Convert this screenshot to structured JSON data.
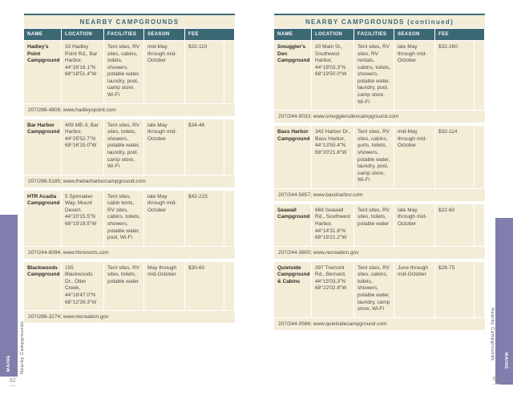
{
  "palette": {
    "teal": "#3c6874",
    "cream": "#f3edd8",
    "purple": "#7f7eac"
  },
  "pages": [
    {
      "title": "NEARBY CAMPGROUNDS",
      "columns": [
        "NAME",
        "LOCATION",
        "FACILITIES",
        "SEASON",
        "FEE"
      ],
      "campgrounds": [
        {
          "name": "Hadley's Point Campground",
          "location": "33 Hadley Point Rd., Bar Harbor, 44°26'16.1\"N 68°18'51.4\"W",
          "facilities": "Tent sites, RV sites, cabins, toilets, showers, potable water, laundry, pool, camp store, Wi-Fi",
          "season": "mid-May through mid-October",
          "fee": "$32-110",
          "contact": "207/288-4808; www.hadleyspoint.com"
        },
        {
          "name": "Bar Harbor Campground",
          "location": "409 ME-3, Bar Harbor, 44°25'52.7\"N 68°16'15.0\"W",
          "facilities": "Tent sites, RV sites, toilets, showers, potable water, laundry, pool, camp store, Wi-Fi",
          "season": "late May through mid-October",
          "fee": "$34-46",
          "contact": "207/288-5185; www.thebarharborcampground.com"
        },
        {
          "name": "HTR Acadia Campground",
          "location": "5 Spinnaker Way, Mount Desert, 44°20'15.5\"N 68°19'19.5\"W",
          "facilities": "Tent sites, cabin tents, RV sites, cabins, toilets, showers, potable water, pool, Wi-Fi",
          "season": "late May through mid-October",
          "fee": "$42-215",
          "contact": "207/244-8094; www.htrresorts.com"
        },
        {
          "name": "Blackwoods Campground",
          "location": "155 Blackwoods Dr., Otter Creek, 44°18'47.0\"N 68°12'39.3\"W",
          "facilities": "Tent sites, RV sites, toilets, potable water",
          "season": "May through mid-October",
          "fee": "$30-60",
          "contact": "207/288-3274; www.recreation.gov"
        }
      ],
      "sidebar": {
        "state": "MAINE",
        "section": "Nearby Campgrounds"
      },
      "page_number": "62"
    },
    {
      "title": "NEARBY CAMPGROUNDS (continued)",
      "columns": [
        "NAME",
        "LOCATION",
        "FACILITIES",
        "SEASON",
        "FEE"
      ],
      "campgrounds": [
        {
          "name": "Smuggler's Den Campground",
          "location": "20 Main St., Southwest Harbor, 44°18'03.3\"N 68°19'50.0\"W",
          "facilities": "Tent sites, RV sites, RV rentals, cabins, toilets, showers, potable water, laundry, pool, camp store, Wi-Fi",
          "season": "late May through mid-October",
          "fee": "$32-260",
          "contact": "207/244-9033; www.smugglersdencampground.com"
        },
        {
          "name": "Bass Harbor Campground",
          "location": "342 Harbor Dr., Bass Harbor, 44°13'50.4\"N 68°20'21.6\"W",
          "facilities": "Tent sites, RV sites, cabins, yurts, toilets, showers, potable water, laundry, pool, camp store, Wi-Fi",
          "season": "mid-May through mid-October",
          "fee": "$32-114",
          "contact": "207/244-5857; www.bassharbor.com"
        },
        {
          "name": "Seawall Campground",
          "location": "668 Seawall Rd., Southwest Harbor, 44°14'31.8\"N 68°18'21.2\"W",
          "facilities": "Tent sites, RV sites, toilets, potable water",
          "season": "late May through mid-October",
          "fee": "$22-60",
          "contact": "207/244-3600; www.recreation.gov"
        },
        {
          "name": "Quietside Campground & Cabins",
          "location": "397 Tremont Rd., Bernard, 44°15'03.3\"N 68°22'02.8\"W",
          "facilities": "Tent sites, RV sites, cabins, toilets, showers, potable water, laundry, camp store, Wi-Fi",
          "season": "June through mid-October",
          "fee": "$28-75",
          "contact": "207/244-0566; www.quietsidecampground.com"
        }
      ],
      "sidebar": {
        "state": "MAINE",
        "section": "Nearby Campgrounds"
      },
      "page_number": "63"
    }
  ]
}
